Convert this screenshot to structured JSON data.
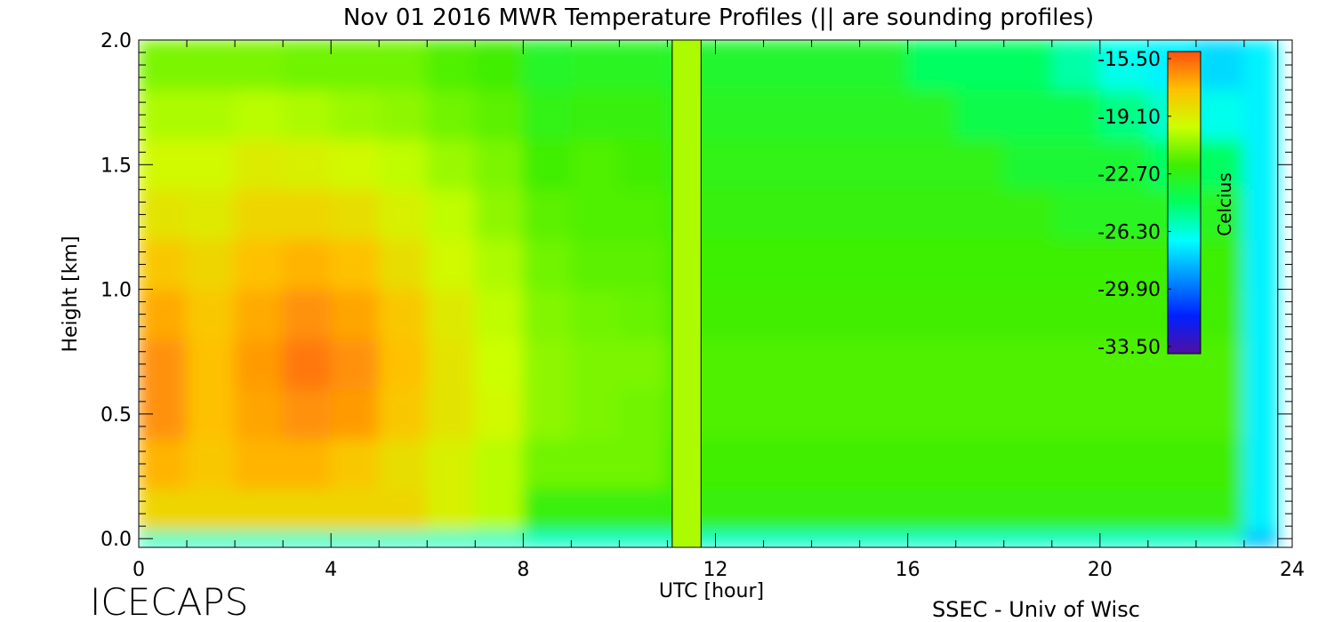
{
  "chart_data": {
    "type": "heatmap",
    "title": "Nov 01 2016 MWR Temperature Profiles (|| are sounding profiles)",
    "xlabel": "UTC [hour]",
    "ylabel": "Height [km]",
    "colorbar_label": "Celcius",
    "footer_left": "ICECAPS",
    "footer_right": "SSEC - Univ of Wisc",
    "xlim": [
      0,
      24
    ],
    "xticks": [
      0,
      4,
      8,
      12,
      16,
      20,
      24
    ],
    "xminor_count": 4,
    "ylim": [
      -0.035,
      2.0
    ],
    "yticks": [
      {
        "value": 0,
        "label": "0.0"
      },
      {
        "value": 0.5,
        "label": "0.5"
      },
      {
        "value": 1,
        "label": "1.0"
      },
      {
        "value": 1.5,
        "label": "1.5"
      },
      {
        "value": 2,
        "label": "2.0"
      }
    ],
    "yminor_count": 10,
    "zlim": [
      -33.5,
      -15.5
    ],
    "zticks": [
      {
        "value": -15.5,
        "label": "-15.50"
      },
      {
        "value": -19.1,
        "label": "-19.10"
      },
      {
        "value": -22.7,
        "label": "-22.70"
      },
      {
        "value": -26.3,
        "label": "-26.30"
      },
      {
        "value": -29.9,
        "label": "-29.90"
      },
      {
        "value": -33.5,
        "label": "-33.50"
      }
    ],
    "colormap": [
      "#5010a0",
      "#0020ff",
      "#0090ff",
      "#00ffff",
      "#00ff60",
      "#40ee00",
      "#ccff00",
      "#ffc000",
      "#ff5010"
    ],
    "x_bins": [
      0,
      1,
      2,
      3,
      4,
      5,
      6,
      7,
      8,
      9,
      10,
      11,
      12,
      13,
      14,
      15,
      16,
      17,
      18,
      19,
      20,
      21,
      22,
      23,
      23.7
    ],
    "y_bins": [
      -0.035,
      0.03,
      0.2,
      0.4,
      0.6,
      0.8,
      1.0,
      1.2,
      1.4,
      1.6,
      1.8,
      2.0
    ],
    "z": [
      [
        -26,
        -26,
        -26,
        -26,
        -26,
        -26,
        -26,
        -26,
        -26,
        -26,
        -26,
        -26,
        -26,
        -26,
        -26,
        -26,
        -26,
        -26,
        -26,
        -26,
        -26,
        -26,
        -26,
        -28
      ],
      [
        -18.5,
        -18.5,
        -18.5,
        -18.5,
        -18.5,
        -18.5,
        -19.5,
        -20.3,
        -22.5,
        -22.5,
        -22.5,
        -22.5,
        -22.5,
        -22.5,
        -22.5,
        -22.5,
        -22.5,
        -22.5,
        -22.5,
        -22.5,
        -22.5,
        -22.5,
        -22.5,
        -27
      ],
      [
        -17.5,
        -18,
        -17.5,
        -17.5,
        -18,
        -18.8,
        -19.5,
        -20.3,
        -21.5,
        -21.5,
        -21.5,
        -22.3,
        -22.3,
        -22.3,
        -22.3,
        -22.3,
        -22.3,
        -22.3,
        -22.3,
        -22.3,
        -22.3,
        -22.3,
        -22.3,
        -27
      ],
      [
        -16.8,
        -17.8,
        -17.2,
        -16.8,
        -17,
        -18,
        -19,
        -19.8,
        -21,
        -21.3,
        -21.5,
        -22,
        -22,
        -22,
        -22,
        -22,
        -22,
        -22,
        -22,
        -22,
        -22,
        -22,
        -22,
        -27
      ],
      [
        -16.8,
        -17.8,
        -17,
        -16.3,
        -16.8,
        -17.8,
        -19,
        -20,
        -21,
        -21.3,
        -21.3,
        -22,
        -22,
        -22,
        -22,
        -22,
        -22,
        -22,
        -22,
        -22,
        -22,
        -22,
        -22,
        -27
      ],
      [
        -17.3,
        -18,
        -17.3,
        -16.8,
        -17.2,
        -18,
        -19.2,
        -20.2,
        -21.2,
        -21.5,
        -21.6,
        -22.2,
        -22.2,
        -22.2,
        -22.2,
        -22.2,
        -22.2,
        -22.2,
        -22.2,
        -22.2,
        -22.2,
        -22.2,
        -22.2,
        -27
      ],
      [
        -18,
        -18.5,
        -17.8,
        -17.5,
        -17.8,
        -18.8,
        -19.8,
        -20.5,
        -21.5,
        -21.8,
        -21.8,
        -22.4,
        -22.4,
        -22.4,
        -22.4,
        -22.4,
        -22.4,
        -22.4,
        -22.4,
        -22.4,
        -22.4,
        -22.4,
        -22.4,
        -27
      ],
      [
        -19,
        -19.2,
        -18.5,
        -18.5,
        -18.8,
        -19.5,
        -20.2,
        -21,
        -21.8,
        -22,
        -22,
        -22.5,
        -22.5,
        -22.5,
        -22.5,
        -22.5,
        -22.5,
        -22.5,
        -22.5,
        -23,
        -23,
        -23,
        -23,
        -27
      ],
      [
        -19.8,
        -19.8,
        -19.3,
        -19.5,
        -19.8,
        -20.2,
        -20.8,
        -21.3,
        -22.3,
        -22,
        -22.2,
        -22.8,
        -22.8,
        -22.8,
        -22.8,
        -22.8,
        -22.8,
        -22.8,
        -23.5,
        -23.5,
        -23.5,
        -24.5,
        -24.5,
        -27
      ],
      [
        -20.5,
        -20.5,
        -20.3,
        -20.5,
        -20.8,
        -21,
        -21.5,
        -21.8,
        -22.8,
        -22.5,
        -22.5,
        -23,
        -23,
        -23,
        -23,
        -23,
        -23,
        -24,
        -24,
        -24,
        -25,
        -26,
        -26.5,
        -27
      ],
      [
        -21.3,
        -21.3,
        -21.3,
        -21.5,
        -21.5,
        -21.5,
        -22,
        -22.3,
        -23.2,
        -23,
        -23,
        -23.3,
        -23.3,
        -23.3,
        -23.3,
        -23.3,
        -24.5,
        -24.5,
        -24.5,
        -25.5,
        -26.5,
        -27,
        -27.5,
        -27
      ]
    ],
    "sounding": {
      "x": [
        11.1,
        11.7
      ],
      "value": -20.5
    }
  }
}
